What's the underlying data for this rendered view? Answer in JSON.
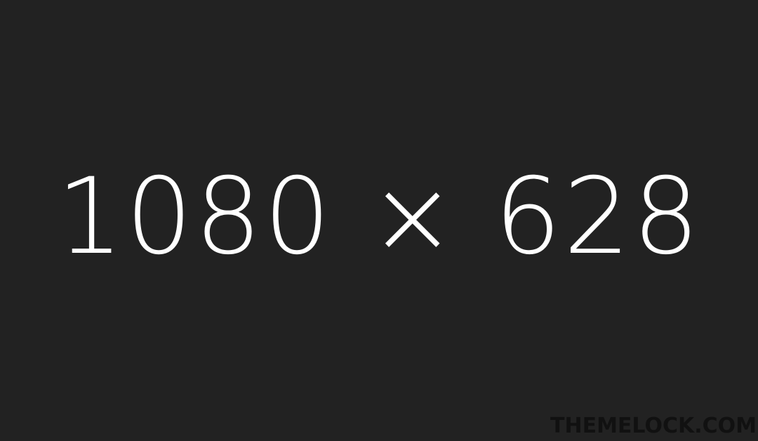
{
  "placeholder": {
    "dimensions_text": "1080 × 628",
    "watermark": "THEMELOCK.COM",
    "background_color": "#222222",
    "text_color": "#ffffff",
    "watermark_color": "#111111"
  }
}
